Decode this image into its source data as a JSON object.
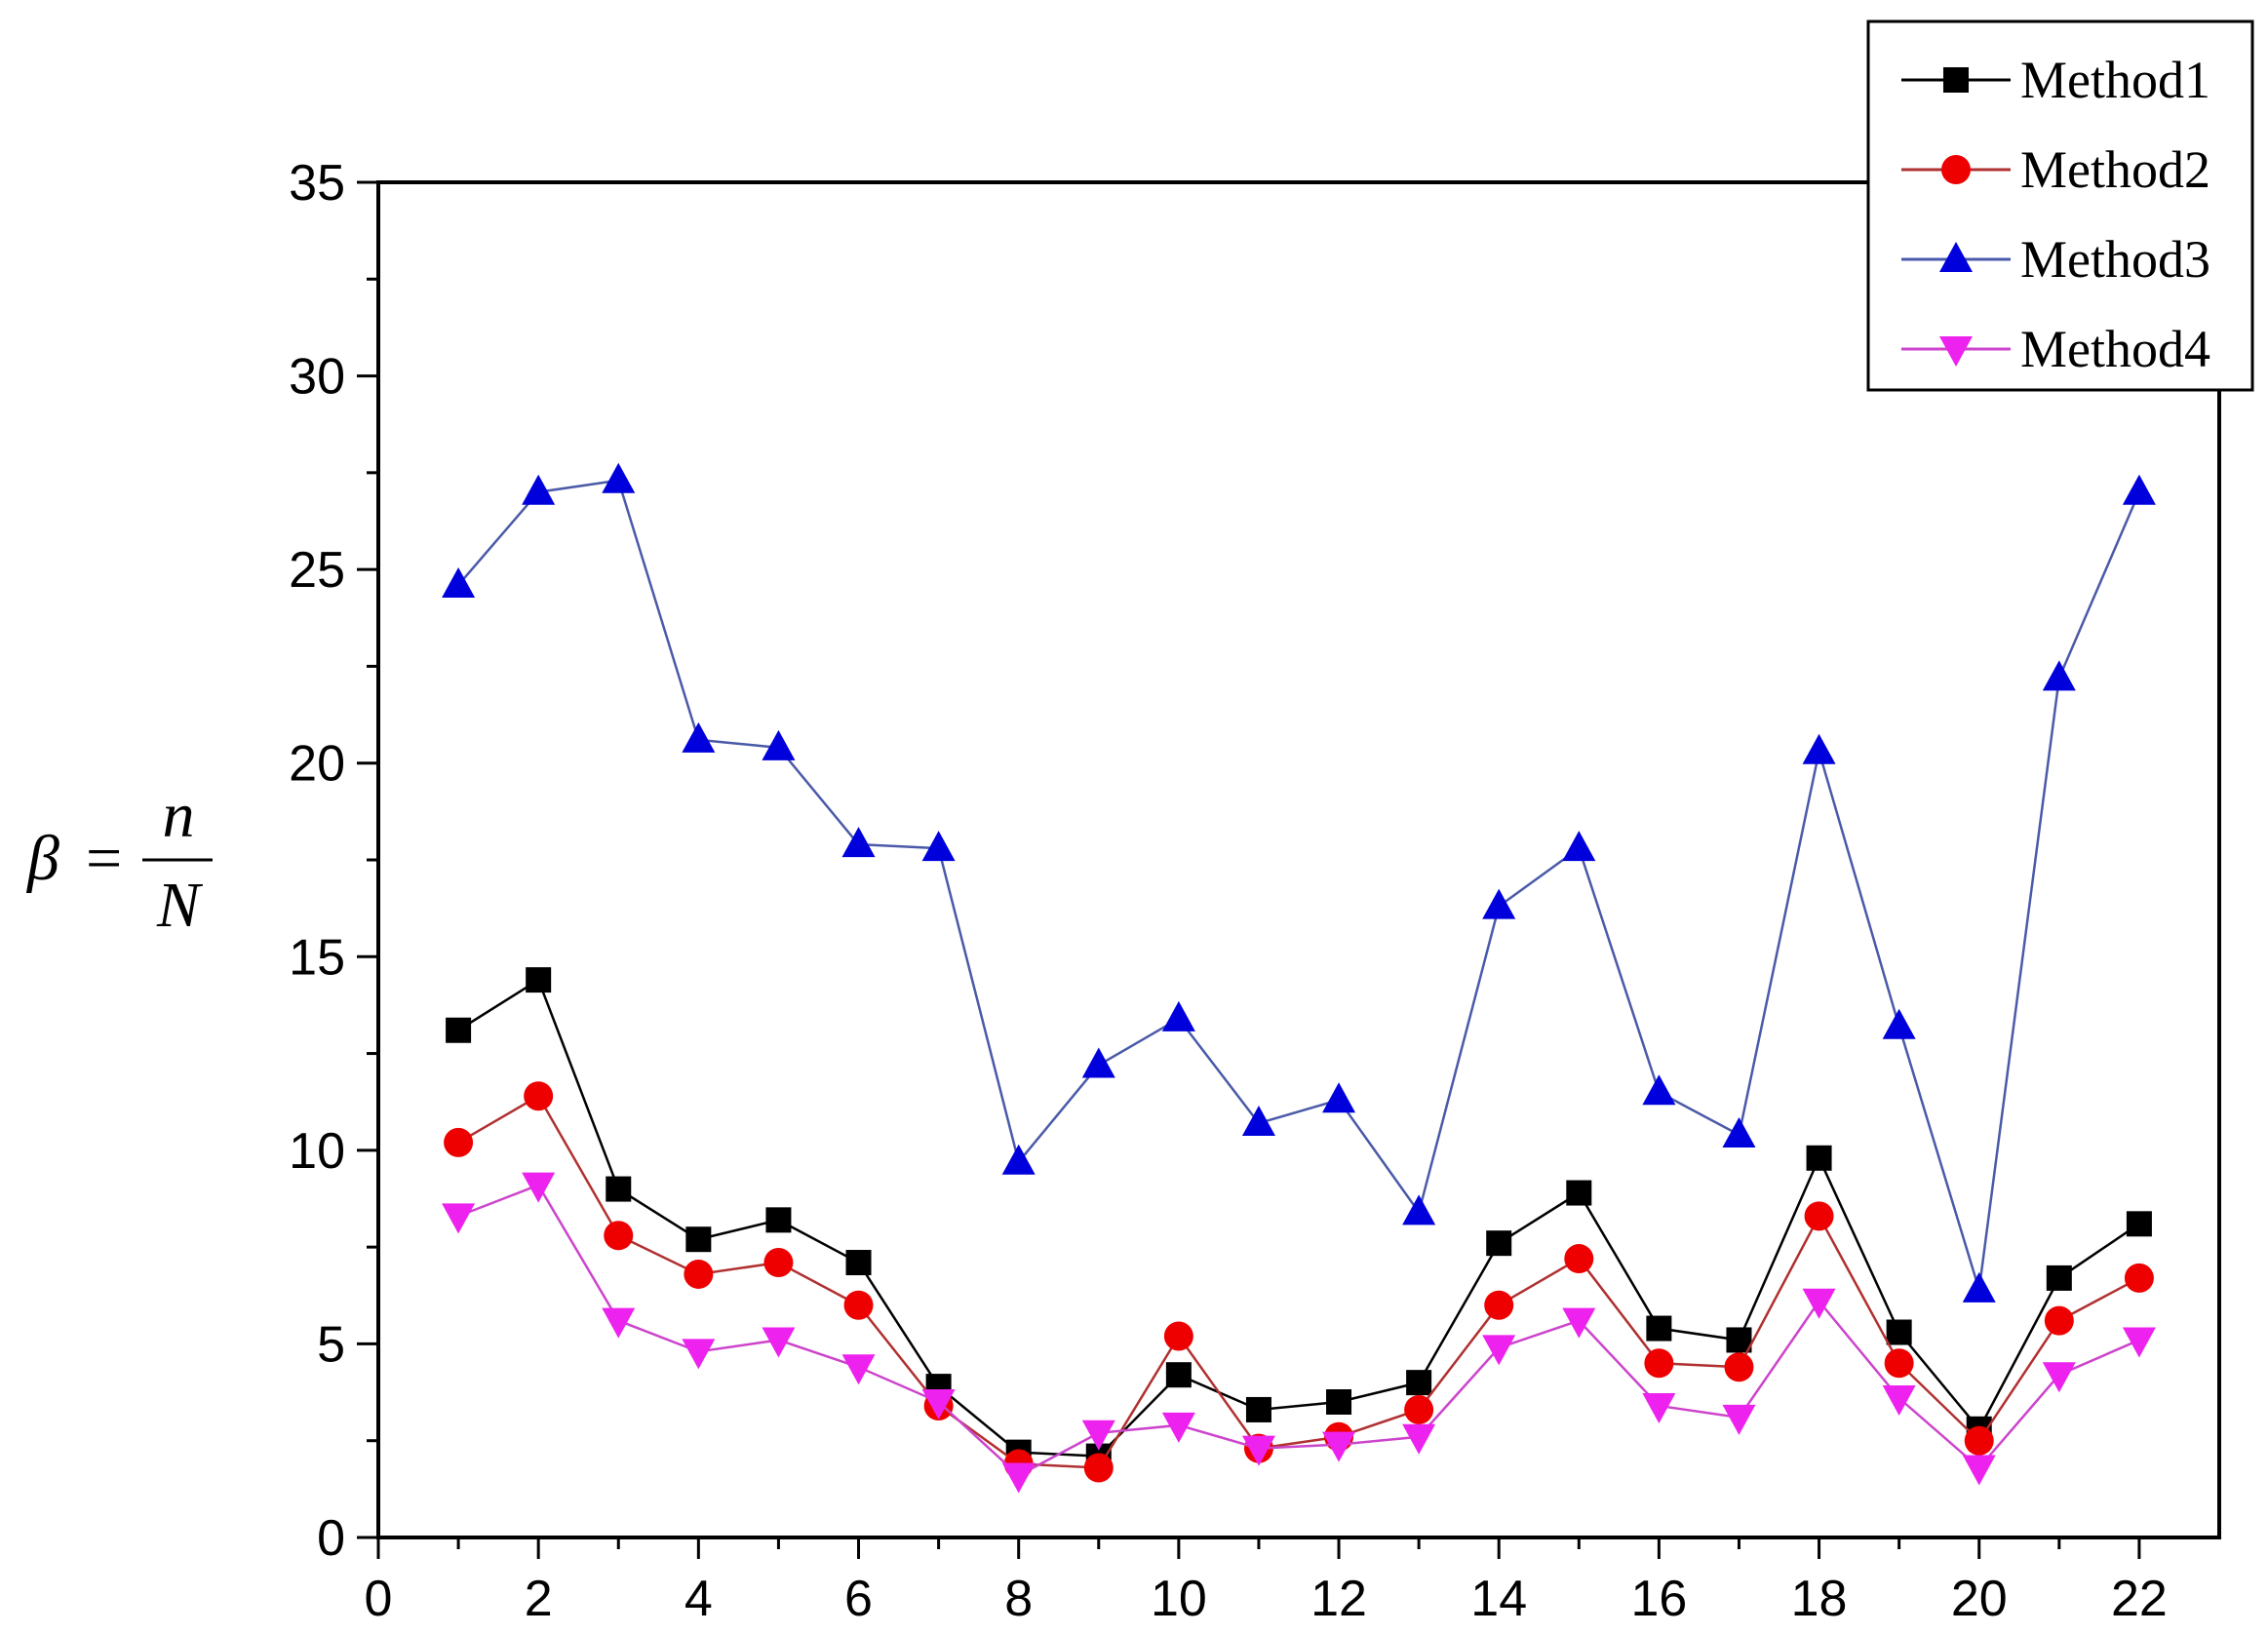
{
  "chart_data": {
    "type": "line",
    "title": "",
    "xlabel": "",
    "ylabel": {
      "symbol": "β",
      "equals": "=",
      "numerator": "n",
      "denominator": "N"
    },
    "xlim": [
      0,
      23
    ],
    "ylim": [
      0,
      35
    ],
    "xticks": [
      0,
      2,
      4,
      6,
      8,
      10,
      12,
      14,
      16,
      18,
      20,
      22
    ],
    "yticks": [
      0,
      5,
      10,
      15,
      20,
      25,
      30,
      35
    ],
    "grid": false,
    "legend_position": "top-right",
    "x": [
      1,
      2,
      3,
      4,
      5,
      6,
      7,
      8,
      9,
      10,
      11,
      12,
      13,
      14,
      15,
      16,
      17,
      18,
      19,
      20,
      21,
      22
    ],
    "series": [
      {
        "name": "Method1",
        "marker": "square",
        "marker_color": "#000000",
        "line_color": "#000000",
        "values": [
          13.1,
          14.4,
          9.0,
          7.7,
          8.2,
          7.1,
          3.9,
          2.2,
          2.1,
          4.2,
          3.3,
          3.5,
          4.0,
          7.6,
          8.9,
          5.4,
          5.1,
          9.8,
          5.3,
          2.8,
          6.7,
          8.1
        ]
      },
      {
        "name": "Method2",
        "marker": "circle",
        "marker_color": "#ee0000",
        "line_color": "#b03030",
        "values": [
          10.2,
          11.4,
          7.8,
          6.8,
          7.1,
          6.0,
          3.4,
          1.9,
          1.8,
          5.2,
          2.3,
          2.6,
          3.3,
          6.0,
          7.2,
          4.5,
          4.4,
          8.3,
          4.5,
          2.5,
          5.6,
          6.7
        ]
      },
      {
        "name": "Method3",
        "marker": "triangle-up",
        "marker_color": "#0000dd",
        "line_color": "#4a5aa8",
        "values": [
          24.6,
          27.0,
          27.3,
          20.6,
          20.4,
          17.9,
          17.8,
          9.7,
          12.2,
          13.4,
          10.7,
          11.3,
          8.4,
          16.3,
          17.8,
          11.5,
          10.4,
          20.3,
          13.2,
          6.4,
          22.2,
          27.0
        ]
      },
      {
        "name": "Method4",
        "marker": "triangle-down",
        "marker_color": "#ee22ee",
        "line_color": "#cc44cc",
        "values": [
          8.3,
          9.1,
          5.6,
          4.8,
          5.1,
          4.4,
          3.5,
          1.6,
          2.7,
          2.9,
          2.3,
          2.4,
          2.6,
          4.9,
          5.6,
          3.4,
          3.1,
          6.1,
          3.6,
          1.8,
          4.2,
          5.1
        ]
      }
    ]
  }
}
